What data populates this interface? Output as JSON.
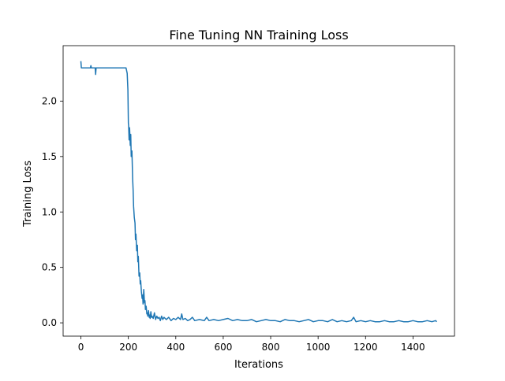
{
  "chart_data": {
    "type": "line",
    "title": "Fine Tuning NN Training Loss",
    "xlabel": "Iterations",
    "ylabel": "Training Loss",
    "xlim": [
      -75,
      1575
    ],
    "ylim": [
      -0.12,
      2.5
    ],
    "xticks": [
      0,
      200,
      400,
      600,
      800,
      1000,
      1200,
      1400
    ],
    "xtick_labels": [
      "0",
      "200",
      "400",
      "600",
      "800",
      "1000",
      "1200",
      "1400"
    ],
    "yticks": [
      0.0,
      0.5,
      1.0,
      1.5,
      2.0
    ],
    "ytick_labels": [
      "0.0",
      "0.5",
      "1.0",
      "1.5",
      "2.0"
    ],
    "grid": false,
    "series": [
      {
        "color": "#1f77b4",
        "x": [
          0,
          2,
          4,
          40,
          42,
          44,
          60,
          62,
          64,
          66,
          100,
          150,
          190,
          195,
          198,
          200,
          201,
          203,
          205,
          208,
          210,
          212,
          215,
          218,
          220,
          222,
          225,
          228,
          230,
          232,
          235,
          238,
          240,
          242,
          245,
          248,
          250,
          252,
          255,
          258,
          260,
          262,
          265,
          268,
          270,
          272,
          275,
          278,
          280,
          282,
          285,
          288,
          290,
          292,
          295,
          298,
          300,
          305,
          310,
          315,
          320,
          325,
          330,
          335,
          340,
          345,
          350,
          360,
          370,
          380,
          390,
          400,
          410,
          420,
          425,
          430,
          440,
          450,
          460,
          470,
          480,
          500,
          520,
          530,
          540,
          560,
          580,
          600,
          620,
          640,
          660,
          680,
          700,
          720,
          740,
          760,
          780,
          800,
          820,
          840,
          860,
          880,
          900,
          920,
          940,
          960,
          980,
          1000,
          1020,
          1040,
          1060,
          1080,
          1100,
          1120,
          1140,
          1150,
          1160,
          1180,
          1200,
          1220,
          1240,
          1260,
          1280,
          1300,
          1320,
          1340,
          1360,
          1380,
          1400,
          1420,
          1440,
          1460,
          1480,
          1495,
          1500
        ],
        "y": [
          2.36,
          2.3,
          2.3,
          2.3,
          2.32,
          2.3,
          2.3,
          2.24,
          2.3,
          2.3,
          2.3,
          2.3,
          2.3,
          2.25,
          2.1,
          1.8,
          1.78,
          1.65,
          1.76,
          1.6,
          1.7,
          1.5,
          1.55,
          1.3,
          1.2,
          1.05,
          0.95,
          0.9,
          0.75,
          0.8,
          0.65,
          0.7,
          0.55,
          0.6,
          0.42,
          0.45,
          0.35,
          0.38,
          0.28,
          0.22,
          0.25,
          0.17,
          0.3,
          0.18,
          0.2,
          0.12,
          0.15,
          0.08,
          0.09,
          0.06,
          0.11,
          0.05,
          0.07,
          0.04,
          0.1,
          0.05,
          0.06,
          0.04,
          0.09,
          0.03,
          0.06,
          0.04,
          0.05,
          0.02,
          0.06,
          0.03,
          0.05,
          0.03,
          0.05,
          0.02,
          0.04,
          0.03,
          0.05,
          0.03,
          0.08,
          0.03,
          0.04,
          0.02,
          0.03,
          0.05,
          0.02,
          0.03,
          0.02,
          0.05,
          0.02,
          0.03,
          0.02,
          0.03,
          0.04,
          0.02,
          0.03,
          0.02,
          0.02,
          0.03,
          0.01,
          0.02,
          0.03,
          0.02,
          0.02,
          0.01,
          0.03,
          0.02,
          0.02,
          0.01,
          0.02,
          0.03,
          0.01,
          0.02,
          0.02,
          0.01,
          0.03,
          0.01,
          0.02,
          0.01,
          0.02,
          0.05,
          0.01,
          0.02,
          0.01,
          0.02,
          0.01,
          0.01,
          0.02,
          0.01,
          0.01,
          0.02,
          0.01,
          0.01,
          0.02,
          0.01,
          0.01,
          0.02,
          0.01,
          0.02,
          0.01
        ]
      }
    ]
  }
}
